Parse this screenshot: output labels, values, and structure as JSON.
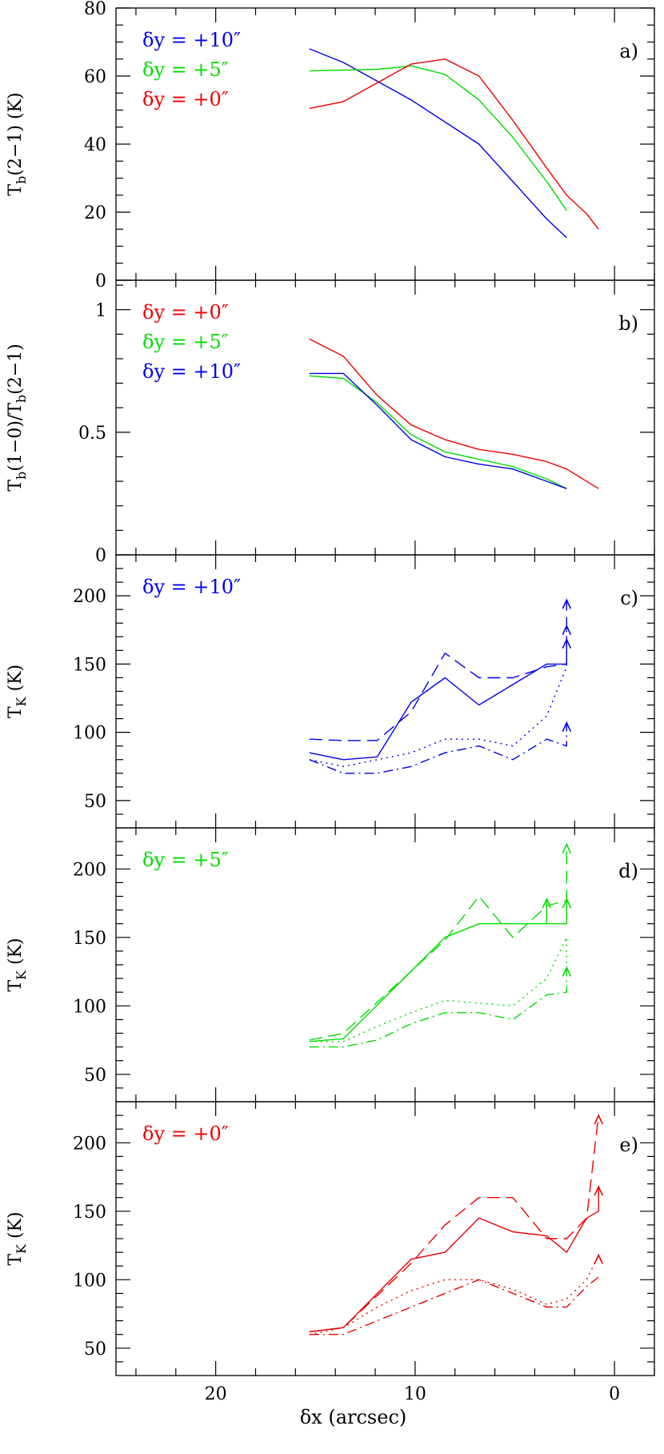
{
  "chart_data": [
    {
      "panel": "a)",
      "type": "line",
      "ylabel": "T_b(2-1) (K)",
      "xlim": [
        25,
        -2
      ],
      "ylim": [
        0,
        80
      ],
      "yticks": [
        0,
        20,
        40,
        60,
        80
      ],
      "yminor": [
        5,
        10,
        15,
        25,
        30,
        35,
        45,
        50,
        55,
        65,
        70,
        75
      ],
      "legend": [
        {
          "text": "δy = +10″",
          "color": "#0000ee"
        },
        {
          "text": "δy = +5″",
          "color": "#00dd00"
        },
        {
          "text": "δy = +0″",
          "color": "#ee0000"
        }
      ],
      "series": [
        {
          "name": "δy = +10″",
          "color": "#0000ee",
          "dash": "solid",
          "x": [
            15.3,
            13.6,
            10.2,
            6.8,
            3.4,
            2.4
          ],
          "y": [
            68,
            64,
            53,
            40,
            18,
            12.5
          ]
        },
        {
          "name": "δy = +5″",
          "color": "#00dd00",
          "dash": "solid",
          "x": [
            15.3,
            11.9,
            10.2,
            8.5,
            6.8,
            5.1,
            3.4,
            2.4
          ],
          "y": [
            61.5,
            62,
            63,
            60.5,
            53,
            42,
            29,
            20.5
          ]
        },
        {
          "name": "δy = +0″",
          "color": "#ee0000",
          "dash": "solid",
          "x": [
            15.3,
            13.6,
            10.2,
            8.5,
            6.8,
            5.1,
            3.4,
            2.4,
            1.4,
            0.8
          ],
          "y": [
            50.5,
            52.5,
            63.5,
            65,
            60,
            47,
            33,
            25,
            19.5,
            15
          ]
        }
      ]
    },
    {
      "panel": "b)",
      "type": "line",
      "ylabel": "T_b(1-0)/T_b(2-1)",
      "xlim": [
        25,
        -2
      ],
      "ylim": [
        0,
        1.12
      ],
      "yticks": [
        0,
        0.5,
        1
      ],
      "yticklabels": [
        "0",
        "0.5",
        "1"
      ],
      "yminor": [
        0.1,
        0.2,
        0.3,
        0.4,
        0.6,
        0.7,
        0.8,
        0.9,
        1.1
      ],
      "legend": [
        {
          "text": "δy = +0″",
          "color": "#ee0000"
        },
        {
          "text": "δy = +5″",
          "color": "#00dd00"
        },
        {
          "text": "δy = +10″",
          "color": "#0000ee"
        }
      ],
      "series": [
        {
          "name": "δy = +0″",
          "color": "#ee0000",
          "dash": "solid",
          "x": [
            15.3,
            13.6,
            11.9,
            10.2,
            8.5,
            6.8,
            5.1,
            3.4,
            2.4,
            0.8
          ],
          "y": [
            0.88,
            0.81,
            0.65,
            0.53,
            0.47,
            0.43,
            0.41,
            0.38,
            0.35,
            0.27
          ]
        },
        {
          "name": "δy = +5″",
          "color": "#00dd00",
          "dash": "solid",
          "x": [
            15.3,
            13.6,
            11.9,
            10.2,
            8.5,
            6.8,
            5.1,
            3.4,
            2.4
          ],
          "y": [
            0.73,
            0.72,
            0.62,
            0.49,
            0.42,
            0.39,
            0.36,
            0.31,
            0.27
          ]
        },
        {
          "name": "δy = +10″",
          "color": "#0000ee",
          "dash": "solid",
          "x": [
            15.3,
            13.6,
            11.9,
            10.2,
            8.5,
            6.8,
            5.1,
            3.4,
            2.4
          ],
          "y": [
            0.74,
            0.74,
            0.61,
            0.47,
            0.4,
            0.37,
            0.35,
            0.3,
            0.27
          ]
        }
      ]
    },
    {
      "panel": "c)",
      "type": "line",
      "ylabel": "T_K (K)",
      "xlim": [
        25,
        -2
      ],
      "ylim": [
        30,
        230
      ],
      "yticks": [
        50,
        100,
        150,
        200
      ],
      "yminor": [
        40,
        60,
        70,
        80,
        90,
        110,
        120,
        130,
        140,
        160,
        170,
        180,
        190,
        210,
        220
      ],
      "legend": [
        {
          "text": "δy = +10″",
          "color": "#0000ee"
        }
      ],
      "series": [
        {
          "color": "#0000ee",
          "dash": "solid",
          "x": [
            15.3,
            13.6,
            11.9,
            10.2,
            8.5,
            6.8,
            5.1,
            3.4,
            2.4,
            2.4
          ],
          "y": [
            85,
            80,
            82,
            122,
            140,
            120,
            135,
            150,
            150,
            168
          ]
        },
        {
          "color": "#0000ee",
          "dash": "dashed",
          "x": [
            15.3,
            13.6,
            11.9,
            10.2,
            8.5,
            6.8,
            5.1,
            3.4,
            2.4,
            2.4
          ],
          "y": [
            95,
            94,
            94,
            115,
            158,
            140,
            140,
            148,
            150,
            197
          ]
        },
        {
          "color": "#0000ee",
          "dash": "dotted",
          "x": [
            15.3,
            13.6,
            11.9,
            10.2,
            8.5,
            6.8,
            5.1,
            3.4,
            2.4,
            2.4
          ],
          "y": [
            80,
            75,
            80,
            85,
            95,
            95,
            90,
            112,
            148,
            178
          ]
        },
        {
          "color": "#0000ee",
          "dash": "dashdot",
          "x": [
            15.3,
            13.6,
            11.9,
            10.2,
            8.5,
            6.8,
            5.1,
            3.4,
            2.4,
            2.4
          ],
          "y": [
            80,
            70,
            70,
            75,
            85,
            90,
            80,
            95,
            90,
            107
          ]
        }
      ],
      "arrows": [
        {
          "x": 2.4,
          "y": 197,
          "color": "#0000ee"
        },
        {
          "x": 2.4,
          "y": 178,
          "color": "#0000ee"
        },
        {
          "x": 2.4,
          "y": 168,
          "color": "#0000ee"
        },
        {
          "x": 2.4,
          "y": 107,
          "color": "#0000ee"
        }
      ]
    },
    {
      "panel": "d)",
      "type": "line",
      "ylabel": "T_K (K)",
      "xlim": [
        25,
        -2
      ],
      "ylim": [
        30,
        230
      ],
      "yticks": [
        50,
        100,
        150,
        200
      ],
      "yminor": [
        40,
        60,
        70,
        80,
        90,
        110,
        120,
        130,
        140,
        160,
        170,
        180,
        190,
        210,
        220
      ],
      "legend": [
        {
          "text": "δy = +5″",
          "color": "#00dd00"
        }
      ],
      "series": [
        {
          "color": "#00dd00",
          "dash": "solid",
          "x": [
            15.3,
            13.6,
            8.5,
            6.8,
            3.4,
            3.4,
            3.4,
            2.4,
            2.4
          ],
          "y": [
            74,
            76,
            150,
            160,
            160,
            178,
            160,
            160,
            178
          ]
        },
        {
          "color": "#00dd00",
          "dash": "dashed",
          "x": [
            15.3,
            13.6,
            8.5,
            6.8,
            5.1,
            3.4,
            2.4,
            2.4
          ],
          "y": [
            75,
            80,
            148,
            180,
            150,
            173,
            177,
            218
          ]
        },
        {
          "color": "#00dd00",
          "dash": "dotted",
          "x": [
            15.3,
            13.6,
            11.9,
            10.2,
            8.5,
            6.8,
            5.1,
            3.4,
            2.4,
            2.4
          ],
          "y": [
            74,
            74,
            85,
            95,
            104,
            102,
            100,
            120,
            150,
            128
          ]
        },
        {
          "color": "#00dd00",
          "dash": "dashdot",
          "x": [
            15.3,
            13.6,
            11.9,
            10.2,
            8.5,
            6.8,
            5.1,
            3.4,
            2.4,
            2.4
          ],
          "y": [
            70,
            70,
            75,
            87,
            95,
            95,
            90,
            108,
            110,
            128
          ]
        }
      ],
      "arrows": [
        {
          "x": 2.4,
          "y": 218,
          "color": "#00dd00"
        },
        {
          "x": 3.4,
          "y": 178,
          "color": "#00dd00"
        },
        {
          "x": 2.4,
          "y": 178,
          "color": "#00dd00"
        },
        {
          "x": 2.4,
          "y": 128,
          "color": "#00dd00"
        }
      ]
    },
    {
      "panel": "e)",
      "type": "line",
      "ylabel": "T_K (K)",
      "xlabel": "δx (arcsec)",
      "xlim": [
        25,
        -2
      ],
      "ylim": [
        30,
        230
      ],
      "yticks": [
        50,
        100,
        150,
        200
      ],
      "yminor": [
        40,
        60,
        70,
        80,
        90,
        110,
        120,
        130,
        140,
        160,
        170,
        180,
        190,
        210,
        220
      ],
      "xticks": [
        20,
        10,
        0
      ],
      "xminor": [
        24,
        22,
        18,
        16,
        14,
        12,
        8,
        6,
        4,
        2,
        -2
      ],
      "legend": [
        {
          "text": "δy = +0″",
          "color": "#ee0000"
        }
      ],
      "series": [
        {
          "color": "#ee0000",
          "dash": "solid",
          "x": [
            15.3,
            13.6,
            10.2,
            8.5,
            6.8,
            5.1,
            3.4,
            2.4,
            1.4,
            0.8,
            0.8
          ],
          "y": [
            62,
            65,
            115,
            120,
            145,
            135,
            132,
            120,
            145,
            150,
            168
          ]
        },
        {
          "color": "#ee0000",
          "dash": "dashed",
          "x": [
            15.3,
            13.6,
            10.2,
            8.5,
            6.8,
            5.1,
            3.4,
            2.4,
            1.4,
            0.8
          ],
          "y": [
            62,
            65,
            112,
            140,
            160,
            160,
            130,
            130,
            145,
            220
          ]
        },
        {
          "color": "#ee0000",
          "dash": "dotted",
          "x": [
            15.3,
            13.6,
            11.9,
            10.2,
            8.5,
            6.8,
            5.1,
            3.4,
            2.4,
            1.4,
            0.8
          ],
          "y": [
            60,
            65,
            80,
            92,
            100,
            100,
            93,
            82,
            86,
            100,
            118
          ]
        },
        {
          "color": "#ee0000",
          "dash": "dashdot",
          "x": [
            15.3,
            13.6,
            11.9,
            10.2,
            8.5,
            6.8,
            5.1,
            3.4,
            2.4,
            1.4,
            0.8
          ],
          "y": [
            60,
            60,
            70,
            80,
            90,
            100,
            90,
            80,
            80,
            95,
            102
          ]
        }
      ],
      "arrows": [
        {
          "x": 0.8,
          "y": 220,
          "color": "#ee0000"
        },
        {
          "x": 0.8,
          "y": 168,
          "color": "#ee0000"
        },
        {
          "x": 0.8,
          "y": 118,
          "color": "#ee0000"
        }
      ]
    }
  ]
}
